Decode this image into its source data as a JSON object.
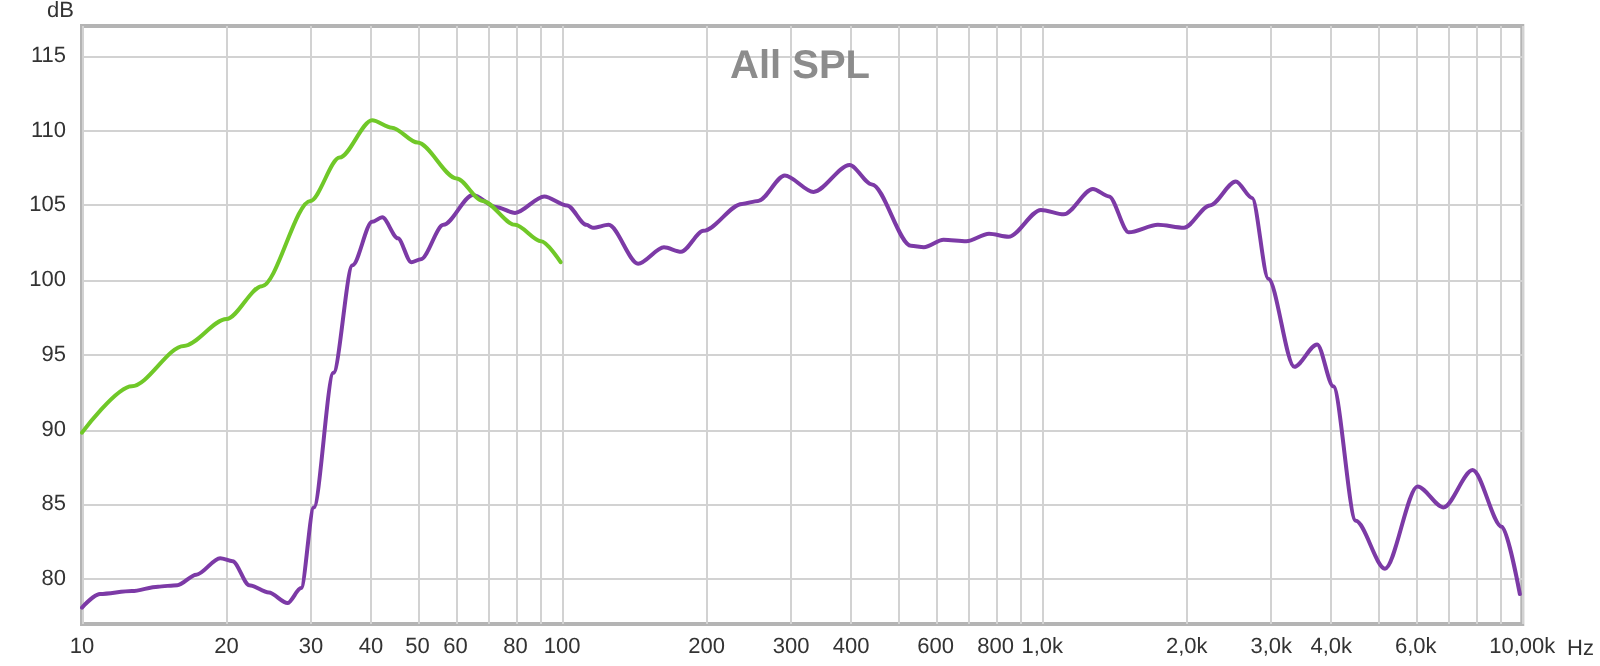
{
  "chart_data": {
    "type": "line",
    "title": "All SPL",
    "xlabel": "Hz",
    "ylabel": "dB",
    "log": "x",
    "grid": true,
    "marker": "none",
    "xlim": [
      10,
      10000
    ],
    "ylim": [
      77,
      117
    ],
    "xticks": [
      10,
      20,
      30,
      40,
      50,
      60,
      {
        "value": 70,
        "label": null
      },
      80,
      {
        "value": 90,
        "label": null
      },
      100,
      200,
      300,
      400,
      {
        "value": 500,
        "label": null
      },
      600,
      {
        "value": 700,
        "label": null
      },
      800,
      {
        "value": 900,
        "label": null
      },
      {
        "value": 1000,
        "label": "1,0k"
      },
      {
        "value": 2000,
        "label": "2,0k"
      },
      {
        "value": 3000,
        "label": "3,0k"
      },
      {
        "value": 4000,
        "label": "4,0k"
      },
      {
        "value": 5000,
        "label": null
      },
      {
        "value": 6000,
        "label": "6,0k"
      },
      {
        "value": 7000,
        "label": null
      },
      {
        "value": 8000,
        "label": null
      },
      {
        "value": 9000,
        "label": null
      },
      {
        "value": 10000,
        "label": "10,00k"
      }
    ],
    "yticks": [
      80,
      85,
      90,
      95,
      100,
      105,
      110,
      115
    ],
    "series": [
      {
        "color": "#7c3aa6",
        "x": [
          10,
          10.9,
          12.7,
          14.4,
          15.8,
          17.3,
          19.4,
          20.6,
          22.3,
          24.5,
          26.8,
          28.6,
          30.4,
          33.4,
          36.6,
          40.2,
          42.2,
          45.5,
          48.5,
          50.8,
          56.6,
          65.2,
          72.7,
          79.8,
          91.8,
          102.4,
          112.4,
          115.9,
          125,
          144,
          163,
          177,
          197,
          237,
          256,
          291,
          334,
          397,
          442,
          533,
          567,
          623,
          695,
          775,
          851,
          994,
          1109,
          1275,
          1378,
          1514,
          1742,
          1974,
          2235,
          2531,
          2737,
          2958,
          3350,
          3739,
          4039,
          4500,
          5176,
          6052,
          6851,
          7882,
          9066,
          9885
        ],
        "values": [
          78.1,
          79.0,
          79.2,
          79.5,
          79.6,
          80.3,
          81.4,
          81.2,
          79.6,
          79.1,
          78.4,
          79.4,
          84.8,
          93.8,
          101,
          103.9,
          104.2,
          102.8,
          101.2,
          101.4,
          103.7,
          105.7,
          104.9,
          104.5,
          105.6,
          105.0,
          103.7,
          103.5,
          103.7,
          101.1,
          102.2,
          101.9,
          103.3,
          105.1,
          105.3,
          107.0,
          105.9,
          107.7,
          106.4,
          102.3,
          102.2,
          102.7,
          102.6,
          103.1,
          102.9,
          104.7,
          104.4,
          106.1,
          105.6,
          103.2,
          103.7,
          103.5,
          105.0,
          106.6,
          105.5,
          100.1,
          94.2,
          95.7,
          92.9,
          83.9,
          80.7,
          86.2,
          84.8,
          87.3,
          83.5,
          79.0
        ]
      },
      {
        "color": "#70c828",
        "x": [
          10,
          12.7,
          16.3,
          20,
          23.7,
          29.9,
          34.4,
          40.2,
          44.2,
          50,
          60.3,
          68.3,
          79.8,
          90.4,
          99.3
        ],
        "values": [
          89.8,
          92.9,
          95.6,
          97.4,
          99.6,
          105.3,
          108.2,
          110.7,
          110.2,
          109.2,
          106.8,
          105.3,
          103.7,
          102.6,
          101.2
        ]
      }
    ]
  }
}
